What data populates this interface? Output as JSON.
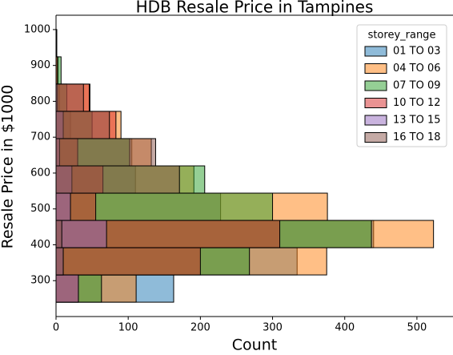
{
  "chart_data": {
    "type": "histogram",
    "orientation": "horizontal",
    "title": "HDB Resale Price in Tampines",
    "xlabel": "Count",
    "ylabel": "Resale Price in $1000",
    "legend_title": "storey_range",
    "legend": "upper right",
    "bins": [
      240,
      316,
      392,
      468,
      544,
      620,
      696,
      772,
      848,
      924,
      1000
    ],
    "series": [
      {
        "name": "01 TO 03",
        "color": "#1f77b4",
        "values": [
          163,
          334,
          440,
          228,
          110,
          105,
          20,
          5,
          0,
          0
        ]
      },
      {
        "name": "04 TO 06",
        "color": "#ff7f0e",
        "values": [
          111,
          375,
          523,
          376,
          191,
          132,
          90,
          47,
          3,
          1
        ]
      },
      {
        "name": "07 TO 09",
        "color": "#2ca02c",
        "values": [
          63,
          268,
          437,
          300,
          206,
          102,
          50,
          15,
          7,
          0
        ]
      },
      {
        "name": "10 TO 12",
        "color": "#d62728",
        "values": [
          31,
          200,
          310,
          55,
          65,
          30,
          83,
          46,
          2,
          1
        ]
      },
      {
        "name": "13 TO 15",
        "color": "#9467bd",
        "values": [
          31,
          10,
          70,
          20,
          22,
          5,
          10,
          2,
          0,
          0
        ]
      },
      {
        "name": "16 TO 18",
        "color": "#8c564b",
        "values": [
          0,
          10,
          8,
          0,
          171,
          138,
          74,
          38,
          0,
          0
        ]
      }
    ],
    "xlim": [
      0,
      550
    ],
    "xticks": [
      0,
      100,
      200,
      300,
      400,
      500
    ],
    "ylim": [
      200,
      1040
    ],
    "yticks": [
      300,
      400,
      500,
      600,
      700,
      800,
      900,
      1000
    ],
    "alpha": 0.5
  }
}
